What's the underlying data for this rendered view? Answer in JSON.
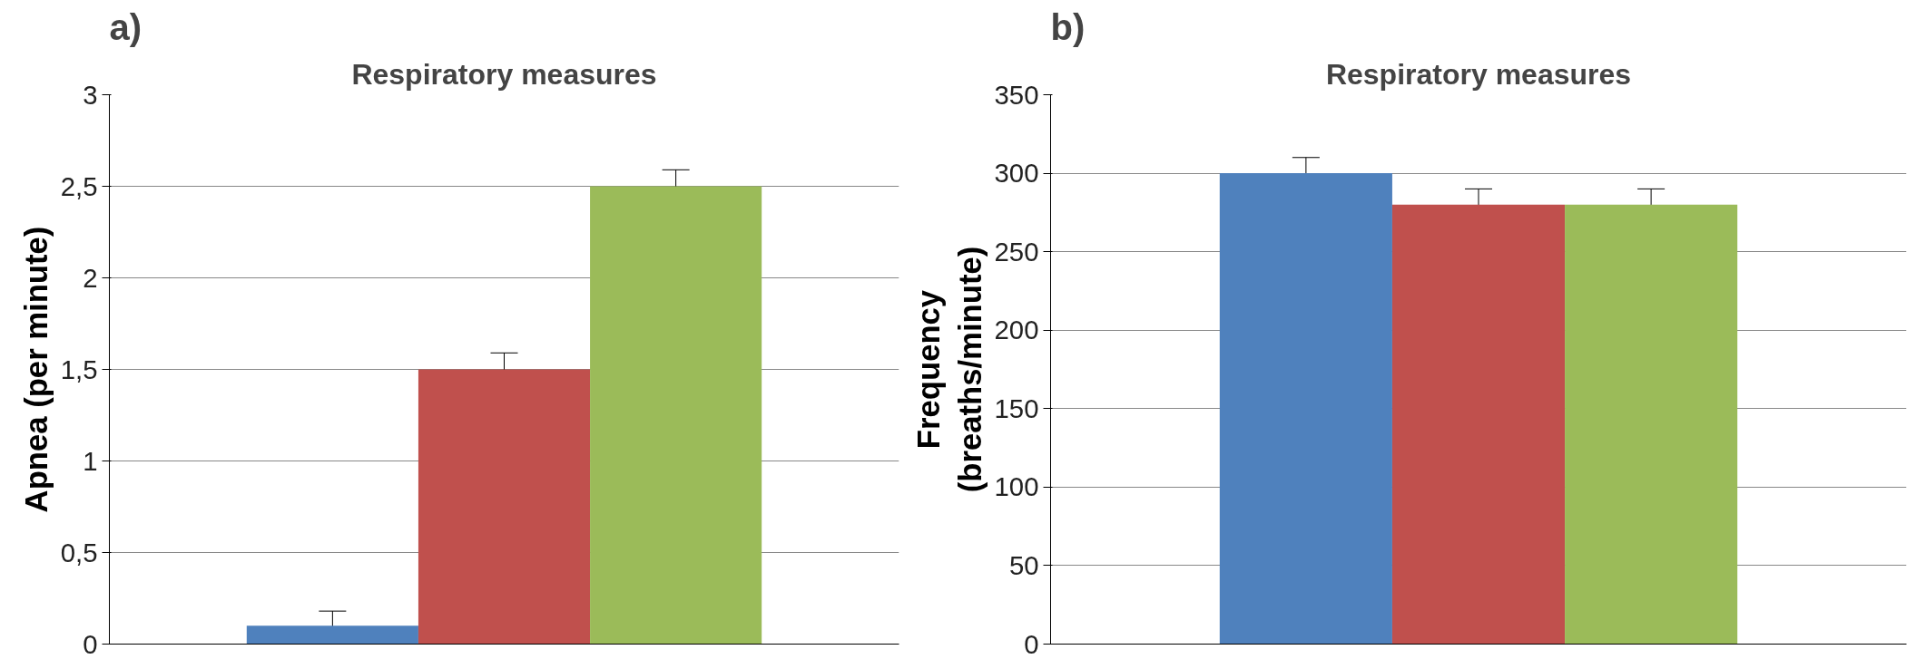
{
  "chart_data": [
    {
      "type": "bar",
      "title": "Respiratory measures",
      "ylabel": "Apnea (per minute)",
      "annotations": [
        "a)"
      ],
      "categories": [
        null,
        null,
        null
      ],
      "values": [
        0.1,
        1.5,
        2.5
      ],
      "colors": [
        "#4f81bd",
        "#c0504d",
        "#9bbb59"
      ],
      "errors": [
        0.08,
        0.09,
        0.09
      ],
      "ylim": [
        0,
        3
      ],
      "yticks": [
        0,
        {
          "value": 0.5,
          "label": "0,5"
        },
        1,
        {
          "value": 1.5,
          "label": "1,5"
        },
        2,
        {
          "value": 2.5,
          "label": "2,5"
        },
        3
      ],
      "grid": "y",
      "legend": false
    },
    {
      "type": "bar",
      "title": "Respiratory measures",
      "ylabel": "Frequency (breaths/minute)",
      "annotations": [
        "b)"
      ],
      "categories": [
        null,
        null,
        null
      ],
      "values": [
        300,
        280,
        280
      ],
      "colors": [
        "#4f81bd",
        "#c0504d",
        "#9bbb59"
      ],
      "errors": [
        10,
        10,
        10
      ],
      "ylim": [
        0,
        350
      ],
      "yticks": [
        0,
        50,
        100,
        150,
        200,
        250,
        300,
        350
      ],
      "grid": "y",
      "legend": false
    }
  ]
}
